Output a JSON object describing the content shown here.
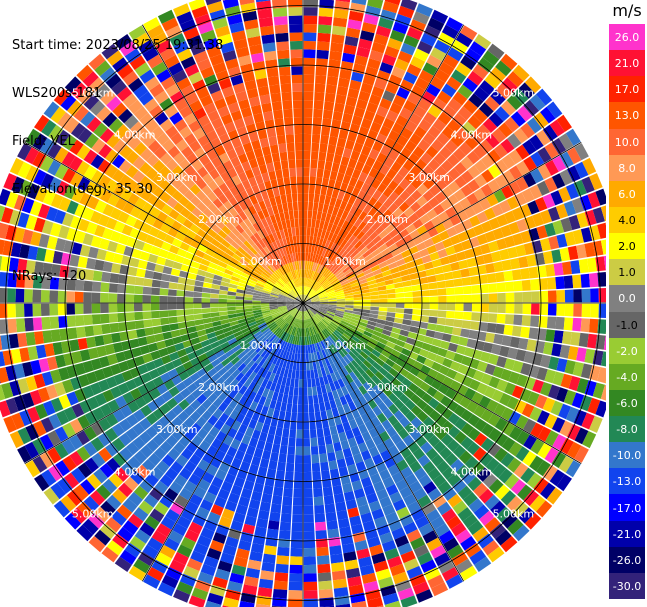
{
  "header": {
    "start_time": "Start time: 2023/08/25 19:31:38",
    "site": "WLS200s-181",
    "field": "Field: VEL",
    "elevation": "Elevation(deg): 35.30",
    "nrays": "NRays: 120"
  },
  "colorbar": {
    "unit": "m/s",
    "ticks": [
      "26.0",
      "21.0",
      "17.0",
      "13.0",
      "10.0",
      "8.0",
      "6.0",
      "4.0",
      "2.0",
      "1.0",
      "0.0",
      "-1.0",
      "-2.0",
      "-4.0",
      "-6.0",
      "-8.0",
      "-10.0",
      "-13.0",
      "-17.0",
      "-21.0",
      "-26.0",
      "-30.0"
    ],
    "colors": [
      "#ff33cc",
      "#ff1133",
      "#ff2200",
      "#ff5500",
      "#ff6633",
      "#ff9955",
      "#ffaa00",
      "#ffcc00",
      "#ffff00",
      "#cccc44",
      "#808080",
      "#666666",
      "#99cc33",
      "#66aa22",
      "#338822",
      "#228855",
      "#3377cc",
      "#1144ee",
      "#0000ff",
      "#0000aa",
      "#000066",
      "#33227a"
    ]
  },
  "chart_data": {
    "type": "ppi",
    "title": "Start time: 2023/08/25 19:31:38",
    "field": "VEL",
    "units": "m/s",
    "elevation_deg": 35.3,
    "n_rays": 120,
    "range_rings_km": [
      1.0,
      2.0,
      3.0,
      4.0,
      5.0
    ],
    "ring_labels": [
      "1.00km",
      "2.00km",
      "3.00km",
      "4.00km",
      "5.00km"
    ],
    "max_range_km": 5.4,
    "clim": [
      -30.0,
      26.0
    ],
    "pattern": "Toward-radar (positive) velocities in the north half, away (negative) velocities in the south half; noisy far ranges"
  }
}
